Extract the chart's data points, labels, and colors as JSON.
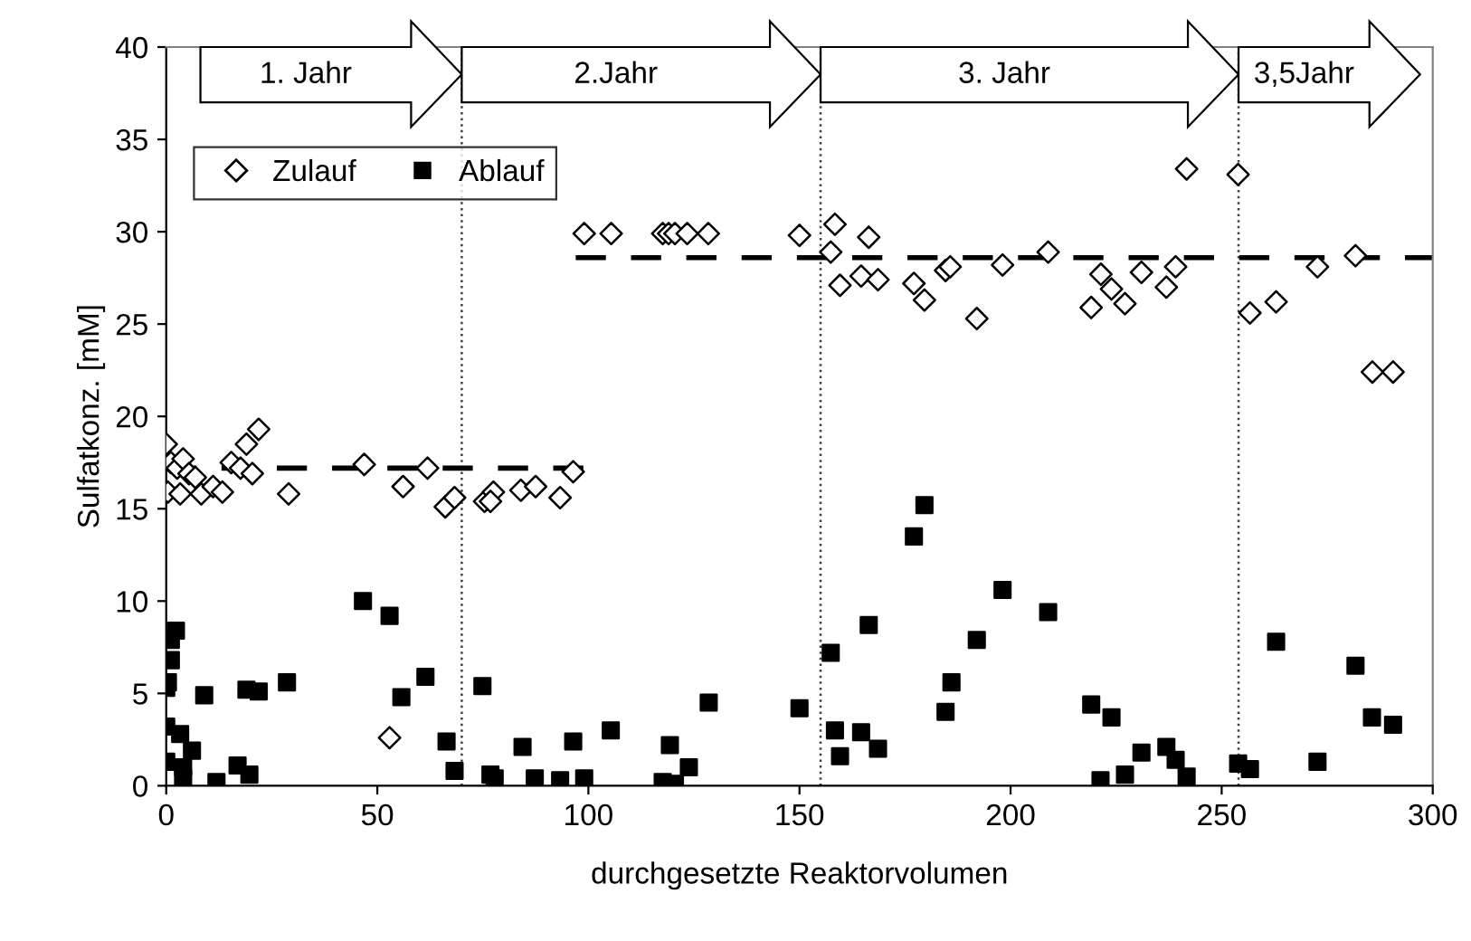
{
  "chart_data": {
    "type": "scatter",
    "xlabel": "durchgesetzte Reaktorvolumen",
    "ylabel": "Sulfatkonz. [mM]",
    "xlim": [
      0,
      300
    ],
    "xticks": [
      0,
      50,
      100,
      150,
      200,
      250,
      300
    ],
    "ylim": [
      0,
      40
    ],
    "yticks": [
      0,
      5,
      10,
      15,
      20,
      25,
      30,
      35,
      40
    ],
    "grid": false,
    "legend": "top left",
    "series": [
      {
        "name": "Zulauf",
        "color": "#000000",
        "marker": "diamond",
        "x": [
          0,
          1.1,
          2.6,
          4,
          5.4,
          0.4,
          3.3,
          6.9,
          8.3,
          11.1,
          13.3,
          15.4,
          17.6,
          19,
          21.9,
          20.4,
          29,
          46.9,
          56.1,
          61.9,
          66.1,
          68.3,
          52.9,
          99,
          105.4,
          117.6,
          119,
          120.5,
          123.4,
          128.4,
          75.4,
          77.5,
          76.8,
          84,
          87.5,
          93.3,
          96.4,
          150,
          158.4,
          157.4,
          166.4,
          159.6,
          164.6,
          168.6,
          177.1,
          179.6,
          184.6,
          185.7,
          192,
          198.1,
          208.9,
          219.1,
          221.4,
          223.9,
          227.1,
          231,
          236.9,
          239.1,
          241.7,
          253.9,
          256.7,
          262.9,
          272.7,
          281.7,
          285.7,
          290.6
        ],
        "values": [
          18.5,
          17.5,
          17.2,
          17.7,
          16.9,
          15.9,
          15.8,
          16.7,
          15.8,
          16.2,
          15.9,
          17.5,
          17.2,
          18.5,
          19.3,
          16.9,
          15.8,
          17.4,
          16.2,
          17.2,
          15.1,
          15.6,
          2.6,
          29.9,
          29.9,
          29.9,
          29.9,
          29.9,
          29.9,
          29.9,
          15.4,
          15.9,
          15.4,
          16.0,
          16.2,
          15.6,
          17.0,
          29.8,
          30.4,
          28.9,
          29.7,
          27.1,
          27.6,
          27.4,
          27.2,
          26.3,
          27.9,
          28.1,
          25.3,
          28.2,
          28.9,
          25.9,
          27.7,
          26.9,
          26.1,
          27.8,
          27.0,
          28.1,
          33.4,
          33.1,
          25.6,
          26.2,
          28.1,
          28.7,
          22.4,
          22.4
        ]
      },
      {
        "name": "Ablauf",
        "color": "#000000",
        "marker": "square",
        "x": [
          2.3,
          1.1,
          1.1,
          0.4,
          0,
          0,
          3.3,
          6.1,
          0,
          4,
          4,
          11.9,
          16.9,
          19.7,
          9,
          19,
          21.9,
          28.6,
          46.6,
          52.9,
          55.7,
          61.4,
          66.4,
          68.3,
          74.9,
          76.8,
          77.8,
          84.4,
          87.3,
          93.3,
          96.4,
          99,
          105.3,
          119.3,
          123.8,
          117.6,
          120.5,
          128.5,
          150,
          157.4,
          158.4,
          159.6,
          164.6,
          166.4,
          168.6,
          177.1,
          179.6,
          184.6,
          186,
          192,
          198.1,
          208.9,
          219.1,
          221.3,
          223.9,
          227.1,
          231,
          236.9,
          239.1,
          241.7,
          253.9,
          256.7,
          262.9,
          272.7,
          281.7,
          285.6,
          290.6
        ],
        "values": [
          8.4,
          7.9,
          6.8,
          5.6,
          5.3,
          3.2,
          2.8,
          1.9,
          1.3,
          1.0,
          0.4,
          0.2,
          1.1,
          0.6,
          4.9,
          5.2,
          5.1,
          5.6,
          10.0,
          9.2,
          4.8,
          5.9,
          2.4,
          0.8,
          5.4,
          0.6,
          0.4,
          2.1,
          0.4,
          0.3,
          2.4,
          0.4,
          3.0,
          2.2,
          1.0,
          0.2,
          0.1,
          4.5,
          4.2,
          7.2,
          3.0,
          1.6,
          2.9,
          8.7,
          2.0,
          13.5,
          15.2,
          4.0,
          5.6,
          7.9,
          10.6,
          9.4,
          4.4,
          0.3,
          3.7,
          0.6,
          1.8,
          2.1,
          1.4,
          0.5,
          1.2,
          0.9,
          7.8,
          1.3,
          6.5,
          3.7,
          3.3
        ]
      },
      {
        "type": "line",
        "color": "#000000",
        "line_style": "dashed",
        "marker": "none",
        "x": [
          0,
          99
        ],
        "values": [
          17.2,
          17.2
        ]
      },
      {
        "type": "line",
        "color": "#000000",
        "line_style": "dashed",
        "marker": "none",
        "x": [
          97,
          300
        ],
        "values": [
          28.6,
          28.6
        ]
      }
    ],
    "ref_lines": [
      {
        "axis": "x",
        "value": 70,
        "color": "#404040",
        "line_style": "dotted"
      },
      {
        "axis": "x",
        "value": 155,
        "color": "#404040",
        "line_style": "dotted"
      },
      {
        "axis": "x",
        "value": 254,
        "color": "#404040",
        "line_style": "dotted"
      }
    ],
    "annotations": [
      "1. Jahr",
      "2.Jahr",
      "3. Jahr",
      "3,5Jahr"
    ]
  }
}
